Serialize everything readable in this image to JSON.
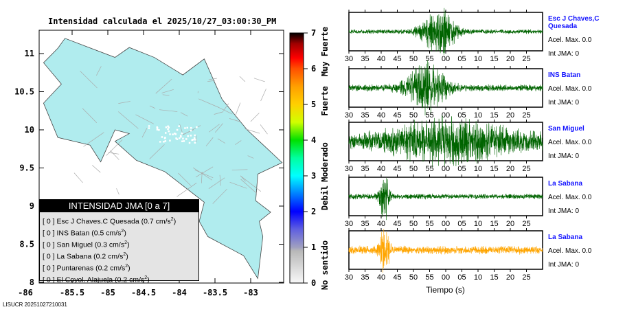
{
  "title": "Intensidad calculada el 2025/10/27_03:00:30_PM",
  "footer": "LISUCR 20251027210031",
  "map": {
    "lon_ticks": [
      "-86",
      "-85.5",
      "-85",
      "-84.5",
      "-84",
      "-83.5",
      "-83"
    ],
    "lat_ticks": [
      "11",
      "10.5",
      "10",
      "9.5",
      "9",
      "8.5",
      "8"
    ],
    "land_color": "#b0ecee"
  },
  "legend": {
    "header": "INTENSIDAD JMA [0 a 7]",
    "items": [
      {
        "int": "[ 0 ]",
        "name": "Esc J Chaves.C Quesada",
        "accel": "(0.7 cm/s",
        "sup": "2",
        ")": ")"
      },
      {
        "int": "[ 0 ]",
        "name": "INS Batan",
        "accel": "(0.5 cm/s",
        "sup": "2"
      },
      {
        "int": "[ 0 ]",
        "name": "San Miguel",
        "accel": "(0.3 cm/s",
        "sup": "2"
      },
      {
        "int": "[ 0 ]",
        "name": "La Sabana",
        "accel": "(0.2 cm/s",
        "sup": "2"
      },
      {
        "int": "[ 0 ]",
        "name": "Puntarenas",
        "accel": "(0.2 cm/s",
        "sup": "2"
      },
      {
        "int": "[ 0 ]",
        "name": "El Coyol. Alajuela",
        "accel": "(0.2 cm/s",
        "sup": "2"
      }
    ]
  },
  "colorbar": {
    "ticks": [
      "0",
      "1",
      "2",
      "3",
      "4",
      "5",
      "6",
      "7"
    ],
    "categories": [
      "No sentido",
      "Debil",
      "Moderado",
      "Fuerte",
      "Muy Fuerte"
    ]
  },
  "chart_data": {
    "type": "line",
    "xlabel": "Tiempo (s)",
    "x_ticks": [
      "30",
      "35",
      "40",
      "45",
      "50",
      "55",
      "00",
      "05",
      "10",
      "15",
      "20",
      "25"
    ],
    "series": [
      {
        "name": "Esc J Chaves,C Quesada",
        "accel": "Acel. Max. 0.0",
        "int": "Int JMA: 0",
        "color": "#006400",
        "peak_s": 28,
        "spread": 5,
        "amp": 1.0,
        "noise": 0.1
      },
      {
        "name": "INS Batan",
        "accel": "Acel. Max. 0.0",
        "int": "Int JMA: 0",
        "color": "#006400",
        "peak_s": 24,
        "spread": 6,
        "amp": 1.0,
        "noise": 0.15
      },
      {
        "name": "San Miguel",
        "accel": "Acel. Max. 0.0",
        "int": "Int JMA: 0",
        "color": "#006400",
        "peak_s": 32,
        "spread": 20,
        "amp": 0.8,
        "noise": 0.3
      },
      {
        "name": "La Sabana",
        "accel": "Acel. Max. 0.0",
        "int": "Int JMA: 0",
        "color": "#006400",
        "peak_s": 11,
        "spread": 1.5,
        "amp": 1.0,
        "noise": 0.12
      },
      {
        "name": "La Sabana",
        "accel": "Acel. Max. 0.0",
        "int": "Int JMA: 0",
        "color": "#ffa500",
        "peak_s": 11,
        "spread": 1.5,
        "amp": 1.0,
        "noise": 0.18
      }
    ]
  }
}
